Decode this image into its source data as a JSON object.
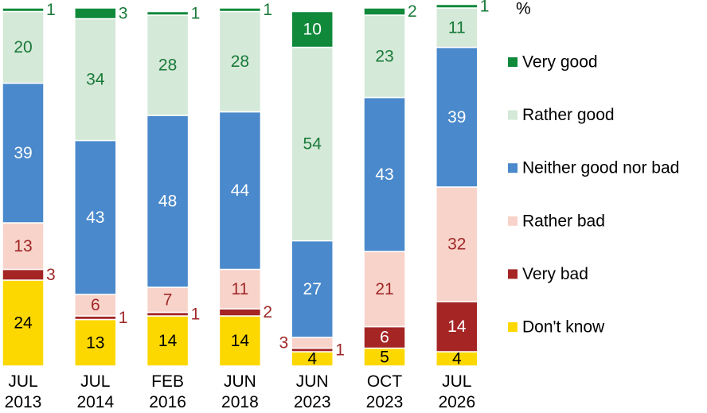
{
  "chart_data": {
    "type": "stacked_bar",
    "unit_label": "%",
    "categories": [
      "JUL 2013",
      "JUL 2014",
      "FEB 2016",
      "JUN 2018",
      "JUN 2023",
      "OCT 2023",
      "JUL 2026"
    ],
    "ylim": [
      0,
      100
    ],
    "series": [
      {
        "name": "Very good",
        "color": "#10893b",
        "label_color": "#ffffff",
        "values": [
          1,
          3,
          1,
          1,
          10,
          2,
          1
        ]
      },
      {
        "name": "Rather good",
        "color": "#d4e9d7",
        "label_color": "#1a7a3a",
        "values": [
          20,
          34,
          28,
          28,
          54,
          23,
          11
        ]
      },
      {
        "name": "Neither good nor bad",
        "color": "#4a89cb",
        "label_color": "#ffffff",
        "values": [
          39,
          43,
          48,
          44,
          27,
          43,
          39
        ]
      },
      {
        "name": "Rather bad",
        "color": "#f8d3ca",
        "label_color": "#a02828",
        "values": [
          13,
          6,
          7,
          11,
          3,
          21,
          32
        ]
      },
      {
        "name": "Very bad",
        "color": "#a52525",
        "label_color": "#ffffff",
        "values": [
          3,
          1,
          1,
          2,
          1,
          6,
          14
        ]
      },
      {
        "name": "Don't know",
        "color": "#fcd800",
        "label_color": "#000000",
        "values": [
          24,
          13,
          14,
          14,
          4,
          5,
          4
        ]
      }
    ]
  }
}
